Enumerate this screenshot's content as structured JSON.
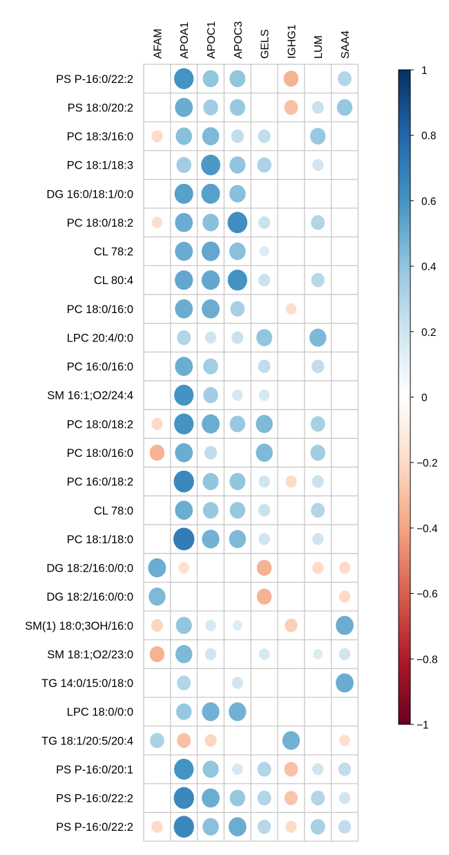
{
  "chart_data": {
    "type": "heatmap",
    "style": "corrplot-circle",
    "columns": [
      "AFAM",
      "APOA1",
      "APOC1",
      "APOC3",
      "GELS",
      "IGHG1",
      "LUM",
      "SAA4"
    ],
    "rows": [
      "PS P-16:0/22:2",
      "PS 18:0/20:2",
      "PC 18:3/16:0",
      "PC 18:1/18:3",
      "DG 16:0/18:1/0:0",
      "PC 18:0/18:2",
      "CL 78:2",
      "CL 80:4",
      "PC 18:0/16:0",
      "LPC 20:4/0:0",
      "PC 16:0/16:0",
      "SM 16:1;O2/24:4",
      "PC 18:0/18:2",
      "PC 18:0/16:0",
      "PC 16:0/18:2",
      "CL 78:0",
      "PC 18:1/18:0",
      "DG 18:2/16:0/0:0",
      "DG 18:2/16:0/0:0",
      "SM(1) 18:0;3OH/16:0",
      "SM 18:1;O2/23:0",
      "TG 14:0/15:0/18:0",
      "LPC 18:0/0:0",
      "TG 18:1/20:5/20:4",
      "PS P-16:0/20:1",
      "PS P-16:0/22:2",
      "PS P-16:0/22:2"
    ],
    "values": [
      [
        0,
        0.6,
        0.4,
        0.4,
        0,
        -0.35,
        0,
        0.3
      ],
      [
        0,
        0.5,
        0.35,
        0.38,
        0,
        -0.3,
        0.22,
        0.38
      ],
      [
        -0.2,
        0.42,
        0.45,
        0.25,
        0.25,
        0,
        0.38,
        0
      ],
      [
        0,
        0.35,
        0.58,
        0.4,
        0.32,
        0,
        0.2,
        0
      ],
      [
        0,
        0.55,
        0.55,
        0.42,
        0,
        0,
        0,
        0
      ],
      [
        -0.18,
        0.5,
        0.42,
        0.62,
        0.22,
        0,
        0.3,
        0
      ],
      [
        0,
        0.5,
        0.52,
        0.42,
        0.15,
        0,
        0,
        0
      ],
      [
        0,
        0.52,
        0.52,
        0.6,
        0.22,
        0,
        0.28,
        0
      ],
      [
        0,
        0.5,
        0.5,
        0.33,
        0,
        -0.18,
        0,
        0
      ],
      [
        0,
        0.3,
        0.2,
        0.22,
        0.4,
        0,
        0.45,
        0
      ],
      [
        0,
        0.5,
        0.35,
        0,
        0.25,
        0,
        0.25,
        0
      ],
      [
        0,
        0.6,
        0.35,
        0.18,
        0.18,
        0,
        0,
        0
      ],
      [
        -0.2,
        0.6,
        0.5,
        0.38,
        0.45,
        0,
        0.33,
        0
      ],
      [
        -0.35,
        0.5,
        0.25,
        0,
        0.45,
        0,
        0.35,
        0
      ],
      [
        0,
        0.65,
        0.4,
        0.4,
        0.2,
        -0.2,
        0.22,
        0
      ],
      [
        0,
        0.5,
        0.38,
        0.38,
        0.22,
        0,
        0.3,
        0
      ],
      [
        0,
        0.7,
        0.48,
        0.45,
        0.2,
        0,
        0.2,
        0
      ],
      [
        0.5,
        -0.18,
        0,
        0,
        -0.35,
        0,
        -0.2,
        -0.2
      ],
      [
        0.45,
        0,
        0,
        0,
        -0.35,
        0,
        0,
        -0.2
      ],
      [
        -0.22,
        0.4,
        0.18,
        0.15,
        0,
        -0.25,
        0,
        0.5
      ],
      [
        -0.35,
        0.45,
        0.2,
        0,
        0.18,
        0,
        0.15,
        0.2
      ],
      [
        0,
        0.3,
        0,
        0.2,
        0,
        0,
        0,
        0.5
      ],
      [
        0,
        0.38,
        0.48,
        0.48,
        0,
        0,
        0,
        0
      ],
      [
        0.32,
        -0.3,
        -0.22,
        0,
        0,
        0.48,
        0,
        -0.18
      ],
      [
        0,
        0.6,
        0.4,
        0.18,
        0.3,
        -0.3,
        0.2,
        0.25
      ],
      [
        0,
        0.65,
        0.5,
        0.38,
        0.3,
        -0.28,
        0.3,
        0.2
      ],
      [
        -0.2,
        0.65,
        0.42,
        0.5,
        0.28,
        -0.2,
        0.33,
        0.25
      ]
    ],
    "colorbar": {
      "range": [
        -1,
        1
      ],
      "ticks": [
        "1",
        "0.8",
        "0.6",
        "0.4",
        "0.2",
        "0",
        "−0.2",
        "−0.4",
        "−0.6",
        "−0.8",
        "−1"
      ],
      "tick_values": [
        1,
        0.8,
        0.6,
        0.4,
        0.2,
        0,
        -0.2,
        -0.4,
        -0.6,
        -0.8,
        -1
      ],
      "colors": [
        "#67001F",
        "#B2182B",
        "#D6604D",
        "#F4A582",
        "#FDDBC7",
        "#FFFFFF",
        "#D1E5F0",
        "#92C5DE",
        "#4393C3",
        "#2166AC",
        "#053061"
      ]
    },
    "grid": true,
    "legend": "right"
  }
}
